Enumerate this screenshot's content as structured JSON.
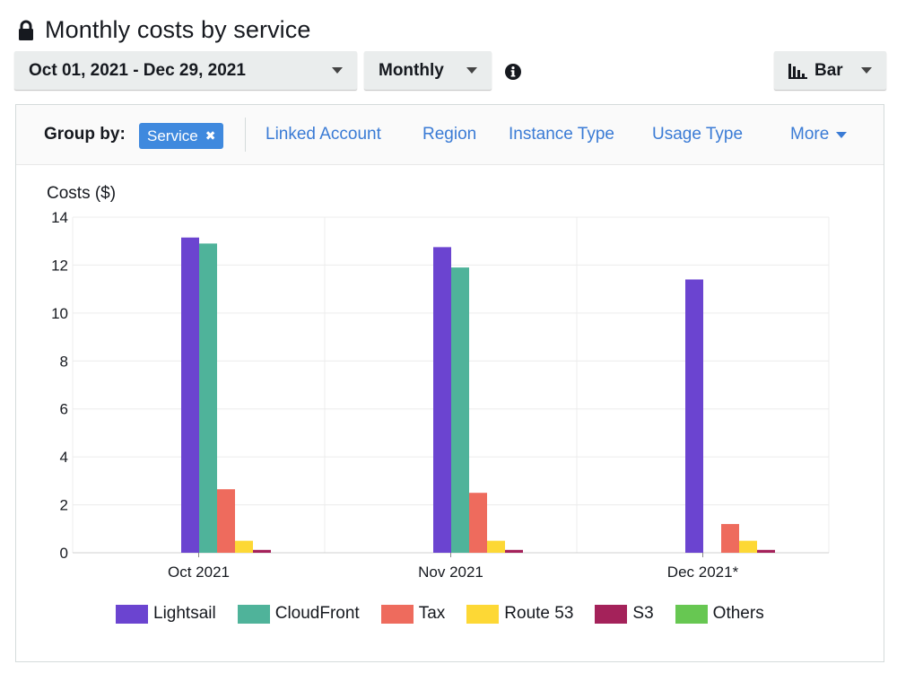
{
  "header": {
    "title": "Monthly costs by service",
    "lock_icon": "lock-icon"
  },
  "controls": {
    "date_range": "Oct 01, 2021 - Dec 29, 2021",
    "granularity": "Monthly",
    "info_icon": "info-icon",
    "chart_type": "Bar",
    "chart_type_icon": "bar-chart-icon"
  },
  "group_by": {
    "label": "Group by:",
    "selected": "Service",
    "options": [
      "Linked Account",
      "Region",
      "Instance Type",
      "Usage Type"
    ],
    "more": "More"
  },
  "colors": {
    "Lightsail": "#6b44d0",
    "CloudFront": "#4fb39a",
    "Tax": "#ee6b5d",
    "Route 53": "#fdd835",
    "S3": "#a4225a",
    "Others": "#67c752"
  },
  "chart_data": {
    "type": "bar",
    "title": "",
    "ylabel": "Costs ($)",
    "xlabel": "",
    "ylim": [
      0,
      14
    ],
    "yticks": [
      0,
      2,
      4,
      6,
      8,
      10,
      12,
      14
    ],
    "grid": true,
    "legend_position": "bottom",
    "categories": [
      "Oct 2021",
      "Nov 2021",
      "Dec 2021*"
    ],
    "series": [
      {
        "name": "Lightsail",
        "values": [
          13.15,
          12.75,
          11.4
        ]
      },
      {
        "name": "CloudFront",
        "values": [
          12.9,
          11.9,
          0
        ]
      },
      {
        "name": "Tax",
        "values": [
          2.65,
          2.5,
          1.2
        ]
      },
      {
        "name": "Route 53",
        "values": [
          0.5,
          0.5,
          0.5
        ]
      },
      {
        "name": "S3",
        "values": [
          0.12,
          0.12,
          0.12
        ]
      },
      {
        "name": "Others",
        "values": [
          0,
          0,
          0
        ]
      }
    ]
  }
}
